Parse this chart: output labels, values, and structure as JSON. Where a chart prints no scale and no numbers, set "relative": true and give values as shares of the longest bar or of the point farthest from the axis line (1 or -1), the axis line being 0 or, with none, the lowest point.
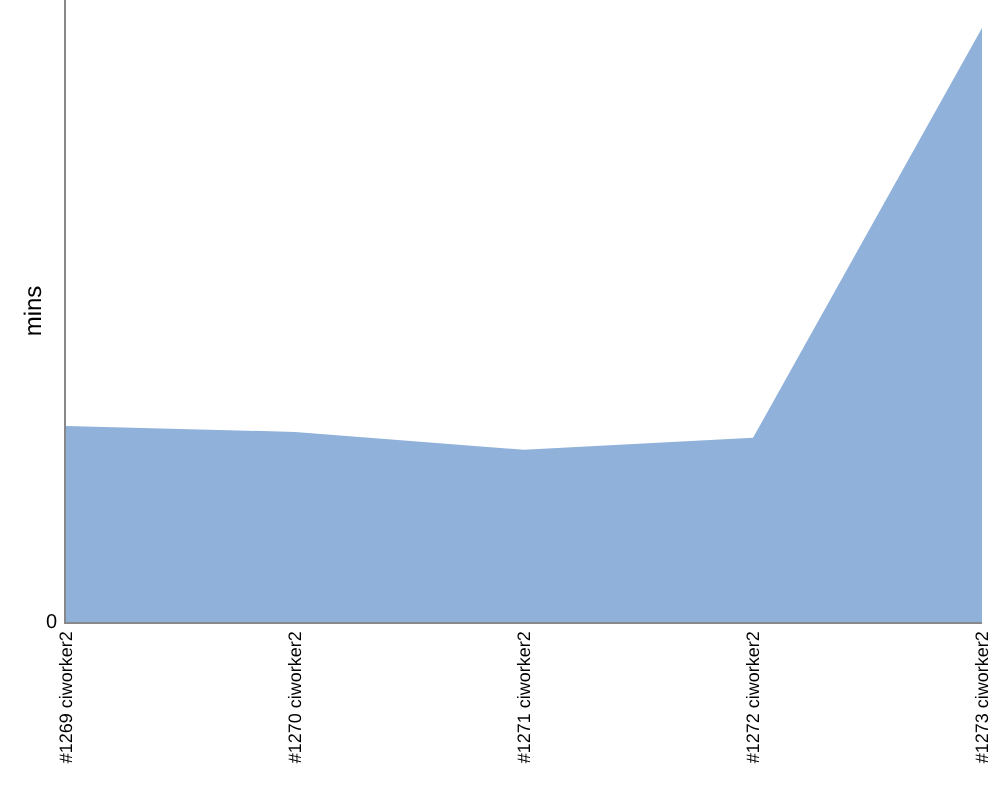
{
  "chart_data": {
    "type": "area",
    "relative": true,
    "ylabel": "mins",
    "categories": [
      "#1269 ciworker2",
      "#1270 ciworker2",
      "#1271 ciworker2",
      "#1272 ciworker2",
      "#1273 ciworker2"
    ],
    "series": [
      {
        "color": "#8fb1da",
        "values": [
          0.33,
          0.32,
          0.29,
          0.31,
          1
        ]
      }
    ],
    "annotations": [
      "0"
    ]
  }
}
